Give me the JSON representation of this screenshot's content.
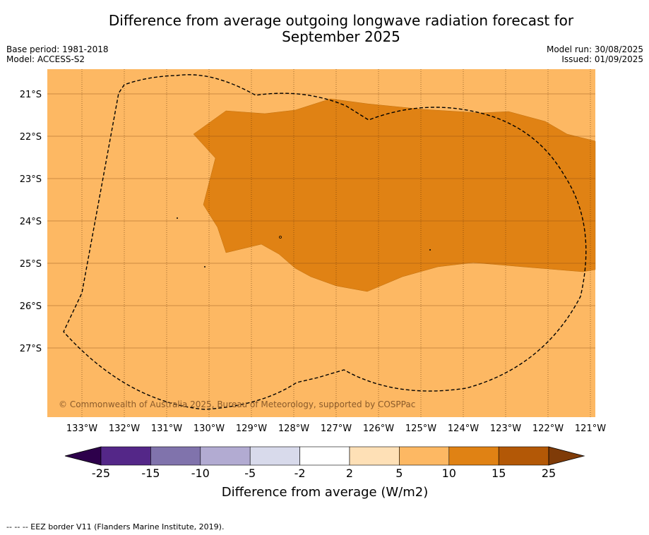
{
  "title_line1": "Difference from average outgoing longwave radiation forecast for",
  "title_line2": "September 2025",
  "base_period": "Base period: 1981-2018",
  "model": "Model: ACCESS-S2",
  "model_run": "Model run: 30/08/2025",
  "issued": "Issued: 01/09/2025",
  "copyright": "© Commonwealth of Australia 2025, Bureau of Meteorology, supported by COSPPac",
  "footnote": "-- -- -- EEZ border V11 (Flanders Marine Institute, 2019).",
  "map": {
    "lat_labels": [
      "21°S",
      "22°S",
      "23°S",
      "24°S",
      "25°S",
      "26°S",
      "27°S"
    ],
    "lon_labels": [
      "133°W",
      "132°W",
      "131°W",
      "130°W",
      "129°W",
      "128°W",
      "127°W",
      "126°W",
      "125°W",
      "124°W",
      "123°W",
      "122°W",
      "121°W"
    ],
    "background_class": "5 to 10",
    "anomaly_class": "10 to 15"
  },
  "legend": {
    "ticks": [
      "-25",
      "-15",
      "-10",
      "-5",
      "-2",
      "2",
      "5",
      "10",
      "15",
      "25"
    ],
    "label": "Difference from average (W/m2)",
    "colors": [
      "#2d004b",
      "#542788",
      "#8073ac",
      "#b2abd2",
      "#d8daeb",
      "#ffffff",
      "#fee0b6",
      "#fdb863",
      "#e08214",
      "#b35806",
      "#7f3b08"
    ]
  }
}
